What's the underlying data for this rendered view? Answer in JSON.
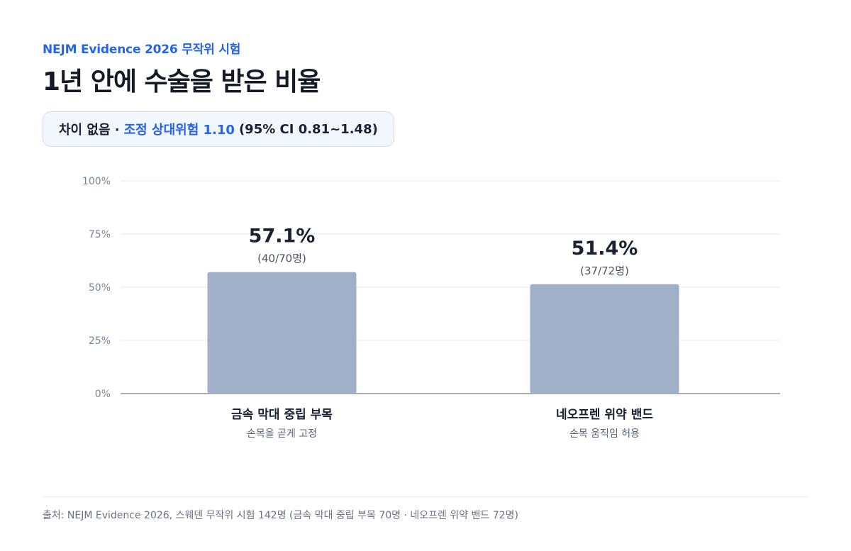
{
  "eyebrow": "NEJM Evidence 2026 무작위 시험",
  "title": "1년 안에 수술을 받은 비율",
  "callout": {
    "prefix": "차이 없음 ·",
    "highlight": "조정 상대위험 1.10",
    "suffix": "(95% CI 0.81~1.48)"
  },
  "chart_data": {
    "type": "bar",
    "categories": [
      "금속 막대 중립 부목",
      "네오프렌 위약 밴드"
    ],
    "category_sublabels": [
      "손목을 곧게 고정",
      "손목 움직임 허용"
    ],
    "values": [
      57.1,
      51.4
    ],
    "value_labels": [
      "57.1%",
      "51.4%"
    ],
    "count_labels": [
      "(40/70명)",
      "(37/72명)"
    ],
    "ylim": [
      0,
      100
    ],
    "yticks": [
      0,
      25,
      50,
      75,
      100
    ],
    "ytick_labels": [
      "0%",
      "25%",
      "50%",
      "75%",
      "100%"
    ],
    "grid": true,
    "bar_color": "#9fb0c8"
  },
  "source": "출처: NEJM Evidence 2026, 스웨덴 무작위 시험 142명 (금속 막대 중립 부목 70명 · 네오프렌 위약 밴드 72명)"
}
